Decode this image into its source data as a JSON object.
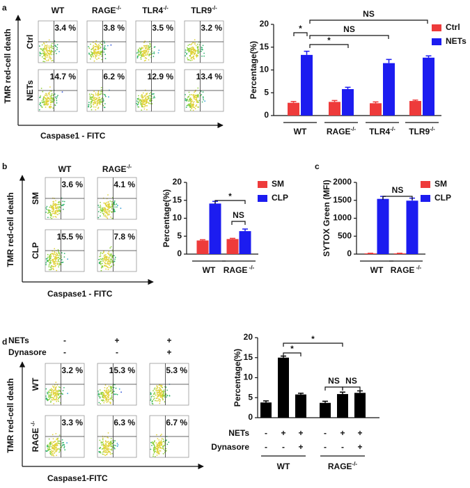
{
  "panel_labels": [
    "a",
    "b",
    "c",
    "d"
  ],
  "flow_panels": [
    {
      "columns": [
        {
          "text": "WT"
        },
        {
          "text": "RAGE",
          "sup": "-/-"
        },
        {
          "text": "TLR4",
          "sup": "-/-"
        },
        {
          "text": "TLR9",
          "sup": "-/-"
        }
      ],
      "rows": [
        {
          "label": {
            "text": "Ctrl"
          },
          "percentages": [
            "3.4 %",
            "3.8 %",
            "3.5 %",
            "3.2 %"
          ]
        },
        {
          "label": {
            "text": "NETs"
          },
          "percentages": [
            "14.7 %",
            "6.2 %",
            "12.9 %",
            "13.4 %"
          ]
        }
      ],
      "y_label": "TMR red-cell death",
      "x_label": "Caspase1 - FITC"
    },
    {
      "columns": [
        {
          "text": "WT"
        },
        {
          "text": "RAGE",
          "sup": "-/-"
        }
      ],
      "rows": [
        {
          "label": {
            "text": "SM"
          },
          "percentages": [
            "3.6 %",
            "4.1 %"
          ]
        },
        {
          "label": {
            "text": "CLP"
          },
          "percentages": [
            "15.5 %",
            "7.8 %"
          ]
        }
      ],
      "y_label": "TMR red-cell death",
      "x_label": "Caspase1 - FITC"
    },
    {
      "treatments": [
        {
          "name": "NETs",
          "values": [
            "-",
            "+",
            "+"
          ]
        },
        {
          "name": "Dynasore",
          "values": [
            "-",
            "-",
            "+"
          ]
        }
      ],
      "rows": [
        {
          "label": {
            "text": "WT"
          },
          "percentages": [
            "3.2 %",
            "15.3 %",
            "5.3 %"
          ]
        },
        {
          "label": {
            "text": "RAGE",
            "sup": " -/-"
          },
          "percentages": [
            "3.3 %",
            "6.3 %",
            "6.7 %"
          ]
        }
      ],
      "y_label": "TMR red-cell death",
      "x_label": "Caspase1-FITC"
    }
  ],
  "chart_data": [
    {
      "type": "bar",
      "y_label": "Percentage(%)",
      "categories": [
        "WT",
        {
          "text": "RAGE",
          "sup": "-/-"
        },
        {
          "text": "TLR4",
          "sup": "-/-"
        },
        {
          "text": "TLR9",
          "sup": "-/-"
        }
      ],
      "series": [
        {
          "name": "Ctrl",
          "color": "#ee3b3b",
          "values": [
            2.8,
            3.0,
            2.7,
            3.2
          ],
          "errors": [
            0.3,
            0.3,
            0.3,
            0.2
          ]
        },
        {
          "name": "NETs",
          "color": "#1c1cf0",
          "values": [
            13.3,
            5.8,
            11.5,
            12.7
          ],
          "errors": [
            0.8,
            0.4,
            0.8,
            0.4
          ]
        }
      ],
      "ylim": [
        0,
        20
      ],
      "yticks": [
        0,
        5,
        10,
        15,
        20
      ],
      "legend": "right",
      "annotations": [
        {
          "text": "*"
        },
        {
          "text": "*"
        },
        {
          "text": "NS"
        },
        {
          "text": "NS"
        }
      ]
    },
    {
      "type": "bar",
      "y_label": "Percentage(%)",
      "categories": [
        "WT",
        {
          "text": "RAGE",
          "sup": " -/-"
        }
      ],
      "series": [
        {
          "name": "SM",
          "color": "#ee3b3b",
          "values": [
            3.8,
            4.2
          ],
          "errors": [
            0.2,
            0.2
          ]
        },
        {
          "name": "CLP",
          "color": "#1c1cf0",
          "values": [
            14.1,
            6.4
          ],
          "errors": [
            0.6,
            0.6
          ]
        }
      ],
      "ylim": [
        0,
        20
      ],
      "yticks": [
        0,
        5,
        10,
        15,
        20
      ],
      "legend": "right",
      "annotations": [
        {
          "text": "*"
        },
        {
          "text": "NS"
        }
      ]
    },
    {
      "type": "bar",
      "y_label": "SYTOX Green (MFI)",
      "categories": [
        "WT",
        {
          "text": "RAGE",
          "sup": " -/-"
        }
      ],
      "series": [
        {
          "name": "SM",
          "color": "#ee3b3b",
          "values": [
            20,
            20
          ],
          "errors": [
            5,
            5
          ]
        },
        {
          "name": "CLP",
          "color": "#1c1cf0",
          "values": [
            1540,
            1490
          ],
          "errors": [
            70,
            70
          ]
        }
      ],
      "ylim": [
        0,
        2000
      ],
      "yticks": [
        0,
        500,
        1000,
        1500,
        2000
      ],
      "legend": "right",
      "annotations": [
        {
          "text": "NS"
        }
      ]
    },
    {
      "type": "bar",
      "y_label": "Percentage(%)",
      "categories": [
        null,
        null,
        null,
        null,
        null,
        null
      ],
      "series": [
        {
          "color": "#000000",
          "values": [
            3.8,
            15.0,
            5.8,
            3.7,
            5.9,
            6.2
          ],
          "errors": [
            0.4,
            0.4,
            0.3,
            0.4,
            0.5,
            0.5
          ]
        }
      ],
      "treatments": [
        {
          "name": "NETs",
          "values": [
            "-",
            "+",
            "+",
            "-",
            "+",
            "+"
          ]
        },
        {
          "name": "Dynasore",
          "values": [
            "-",
            "-",
            "+",
            "-",
            "-",
            "+"
          ]
        }
      ],
      "groups": [
        "WT",
        {
          "text": "RAGE",
          "sup": "-/-"
        }
      ],
      "ylim": [
        0,
        20
      ],
      "yticks": [
        0,
        5,
        10,
        15,
        20
      ],
      "annotations": [
        {
          "text": "*"
        },
        {
          "text": "*"
        },
        {
          "text": "NS"
        },
        {
          "text": "NS"
        }
      ]
    }
  ]
}
